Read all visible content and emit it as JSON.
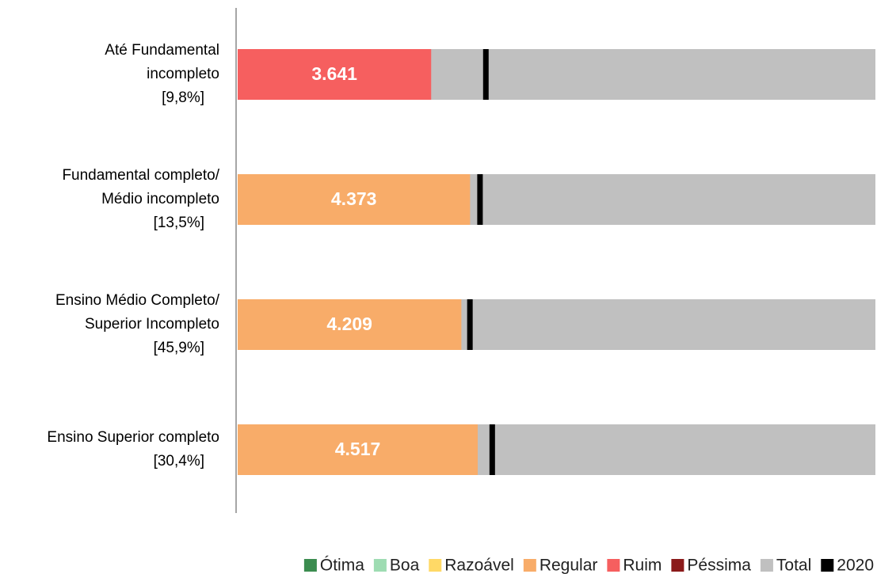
{
  "chart_data": {
    "type": "bar",
    "orientation": "horizontal",
    "categories": [
      [
        "Até Fundamental",
        "incompleto",
        "[9,8%]"
      ],
      [
        "Fundamental completo/",
        "Médio incompleto",
        "[13,5%]"
      ],
      [
        "Ensino Médio Completo/",
        "Superior Incompleto",
        "[45,9%]"
      ],
      [
        "Ensino Superior completo",
        "[30,4%]"
      ]
    ],
    "xlim": [
      0,
      12000
    ],
    "series": [
      {
        "name": "Ótima",
        "color": "#3b8c4f",
        "values": [
          null,
          null,
          null,
          null
        ]
      },
      {
        "name": "Boa",
        "color": "#9edcb2",
        "values": [
          null,
          null,
          null,
          null
        ]
      },
      {
        "name": "Razoável",
        "color": "#ffd966",
        "values": [
          null,
          null,
          null,
          null
        ]
      },
      {
        "name": "Regular",
        "color": "#f8ac69",
        "values": [
          null,
          4373,
          4209,
          4517
        ],
        "value_labels": [
          null,
          "4.373",
          "4.209",
          "4.517"
        ]
      },
      {
        "name": "Ruim",
        "color": "#f65f5f",
        "values": [
          3641,
          null,
          null,
          null
        ],
        "value_labels": [
          "3.641",
          null,
          null,
          null
        ]
      },
      {
        "name": "Péssima",
        "color": "#8b1a1a",
        "values": [
          null,
          null,
          null,
          null
        ]
      },
      {
        "name": "Total",
        "color": "#c0c0c0",
        "values": [
          12000,
          12000,
          12000,
          12000
        ]
      },
      {
        "name": "2020",
        "color": "#000000",
        "marker": true,
        "values": [
          4670,
          4560,
          4370,
          4790
        ]
      }
    ]
  }
}
